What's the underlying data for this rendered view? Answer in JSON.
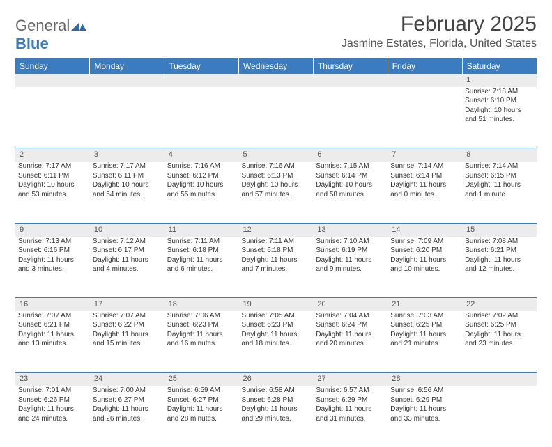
{
  "logo": {
    "word1": "General",
    "word2": "Blue",
    "mark_color": "#2f6aa8"
  },
  "title": "February 2025",
  "location": "Jasmine Estates, Florida, United States",
  "colors": {
    "header_bg": "#3b7bbf",
    "header_text": "#ffffff",
    "daynum_bg": "#ececec",
    "rule": "#3b7bbf",
    "text": "#333333",
    "logo_gray": "#666666",
    "logo_blue": "#3b7bbf"
  },
  "typography": {
    "title_fontsize": 30,
    "location_fontsize": 16,
    "header_fontsize": 12,
    "cell_fontsize": 10,
    "daynum_fontsize": 11
  },
  "layout": {
    "columns": 7,
    "rows": 5,
    "first_day_column": 6
  },
  "day_headers": [
    "Sunday",
    "Monday",
    "Tuesday",
    "Wednesday",
    "Thursday",
    "Friday",
    "Saturday"
  ],
  "days": [
    {
      "n": 1,
      "sunrise": "7:18 AM",
      "sunset": "6:10 PM",
      "daylight": "10 hours and 51 minutes."
    },
    {
      "n": 2,
      "sunrise": "7:17 AM",
      "sunset": "6:11 PM",
      "daylight": "10 hours and 53 minutes."
    },
    {
      "n": 3,
      "sunrise": "7:17 AM",
      "sunset": "6:11 PM",
      "daylight": "10 hours and 54 minutes."
    },
    {
      "n": 4,
      "sunrise": "7:16 AM",
      "sunset": "6:12 PM",
      "daylight": "10 hours and 55 minutes."
    },
    {
      "n": 5,
      "sunrise": "7:16 AM",
      "sunset": "6:13 PM",
      "daylight": "10 hours and 57 minutes."
    },
    {
      "n": 6,
      "sunrise": "7:15 AM",
      "sunset": "6:14 PM",
      "daylight": "10 hours and 58 minutes."
    },
    {
      "n": 7,
      "sunrise": "7:14 AM",
      "sunset": "6:14 PM",
      "daylight": "11 hours and 0 minutes."
    },
    {
      "n": 8,
      "sunrise": "7:14 AM",
      "sunset": "6:15 PM",
      "daylight": "11 hours and 1 minute."
    },
    {
      "n": 9,
      "sunrise": "7:13 AM",
      "sunset": "6:16 PM",
      "daylight": "11 hours and 3 minutes."
    },
    {
      "n": 10,
      "sunrise": "7:12 AM",
      "sunset": "6:17 PM",
      "daylight": "11 hours and 4 minutes."
    },
    {
      "n": 11,
      "sunrise": "7:11 AM",
      "sunset": "6:18 PM",
      "daylight": "11 hours and 6 minutes."
    },
    {
      "n": 12,
      "sunrise": "7:11 AM",
      "sunset": "6:18 PM",
      "daylight": "11 hours and 7 minutes."
    },
    {
      "n": 13,
      "sunrise": "7:10 AM",
      "sunset": "6:19 PM",
      "daylight": "11 hours and 9 minutes."
    },
    {
      "n": 14,
      "sunrise": "7:09 AM",
      "sunset": "6:20 PM",
      "daylight": "11 hours and 10 minutes."
    },
    {
      "n": 15,
      "sunrise": "7:08 AM",
      "sunset": "6:21 PM",
      "daylight": "11 hours and 12 minutes."
    },
    {
      "n": 16,
      "sunrise": "7:07 AM",
      "sunset": "6:21 PM",
      "daylight": "11 hours and 13 minutes."
    },
    {
      "n": 17,
      "sunrise": "7:07 AM",
      "sunset": "6:22 PM",
      "daylight": "11 hours and 15 minutes."
    },
    {
      "n": 18,
      "sunrise": "7:06 AM",
      "sunset": "6:23 PM",
      "daylight": "11 hours and 16 minutes."
    },
    {
      "n": 19,
      "sunrise": "7:05 AM",
      "sunset": "6:23 PM",
      "daylight": "11 hours and 18 minutes."
    },
    {
      "n": 20,
      "sunrise": "7:04 AM",
      "sunset": "6:24 PM",
      "daylight": "11 hours and 20 minutes."
    },
    {
      "n": 21,
      "sunrise": "7:03 AM",
      "sunset": "6:25 PM",
      "daylight": "11 hours and 21 minutes."
    },
    {
      "n": 22,
      "sunrise": "7:02 AM",
      "sunset": "6:25 PM",
      "daylight": "11 hours and 23 minutes."
    },
    {
      "n": 23,
      "sunrise": "7:01 AM",
      "sunset": "6:26 PM",
      "daylight": "11 hours and 24 minutes."
    },
    {
      "n": 24,
      "sunrise": "7:00 AM",
      "sunset": "6:27 PM",
      "daylight": "11 hours and 26 minutes."
    },
    {
      "n": 25,
      "sunrise": "6:59 AM",
      "sunset": "6:27 PM",
      "daylight": "11 hours and 28 minutes."
    },
    {
      "n": 26,
      "sunrise": "6:58 AM",
      "sunset": "6:28 PM",
      "daylight": "11 hours and 29 minutes."
    },
    {
      "n": 27,
      "sunrise": "6:57 AM",
      "sunset": "6:29 PM",
      "daylight": "11 hours and 31 minutes."
    },
    {
      "n": 28,
      "sunrise": "6:56 AM",
      "sunset": "6:29 PM",
      "daylight": "11 hours and 33 minutes."
    }
  ],
  "labels": {
    "sunrise": "Sunrise: ",
    "sunset": "Sunset: ",
    "daylight": "Daylight: "
  }
}
